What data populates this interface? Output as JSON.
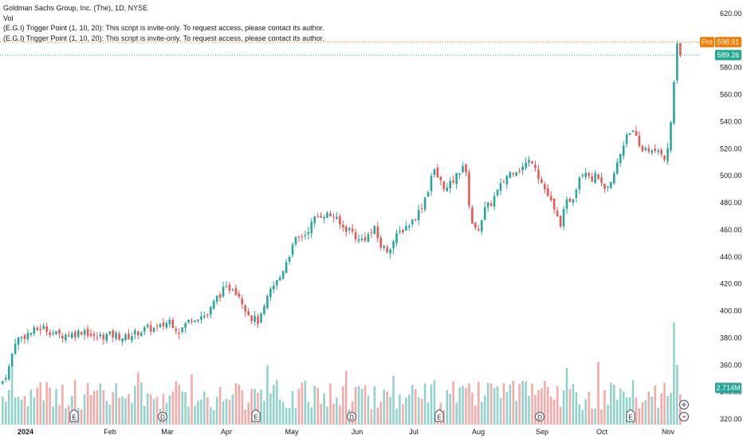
{
  "legend": {
    "title": "Goldman Sachs Group, Inc. (The), 1D, NYSE",
    "volume_label": "Vol",
    "script_line_1": "(E.G.I) Trigger Point  (1, 10, 20): This script is invite-only. To request access, please contact its author.",
    "script_line_2": "(E.G.I) Trigger Point  (1, 10, 20): This script is invite-only. To request access, please contact its author."
  },
  "colors": {
    "up": "#26a69a",
    "down": "#ef5350",
    "volume_up": "#92d2cc",
    "volume_down": "#f7a9a7",
    "premarket": "#f57c00",
    "last_price": "#22ab94"
  },
  "badges": {
    "premarket_label": "Pre",
    "premarket_price": "598.91",
    "last_price": "589.26",
    "volume": "2.714M"
  },
  "chart_data": {
    "type": "candlestick",
    "y_axis_ticks": [
      "620.00",
      "600.00",
      "580.00",
      "560.00",
      "540.00",
      "520.00",
      "500.00",
      "480.00",
      "460.00",
      "440.00",
      "420.00",
      "400.00",
      "380.00",
      "360.00",
      "340.00",
      "320.00"
    ],
    "ylim": [
      320,
      620
    ],
    "x_axis_labels": [
      "2024",
      "Feb",
      "Mar",
      "Apr",
      "May",
      "Jun",
      "Jul",
      "Aug",
      "Sep",
      "Oct",
      "Nov"
    ],
    "premarket_price": 598.91,
    "last_price": 589.26,
    "last_volume": "2.714M",
    "event_markers": [
      {
        "type": "E",
        "label": "E",
        "near": "mid-January"
      },
      {
        "type": "D",
        "label": "D",
        "near": "end of February"
      },
      {
        "type": "E",
        "label": "E",
        "near": "mid-April"
      },
      {
        "type": "D",
        "label": "D",
        "near": "end of May"
      },
      {
        "type": "E",
        "label": "E",
        "near": "mid-July"
      },
      {
        "type": "D",
        "label": "D",
        "near": "end of August"
      },
      {
        "type": "E",
        "label": "E",
        "near": "mid-October"
      }
    ],
    "close_path": [
      [
        0,
        348
      ],
      [
        4,
        358
      ],
      [
        8,
        378
      ],
      [
        16,
        383
      ],
      [
        20,
        385
      ],
      [
        25,
        388
      ],
      [
        35,
        382
      ],
      [
        45,
        383
      ],
      [
        52,
        386
      ],
      [
        58,
        380
      ],
      [
        65,
        382
      ],
      [
        72,
        382
      ],
      [
        78,
        380
      ],
      [
        85,
        384
      ],
      [
        92,
        387
      ],
      [
        99,
        387
      ],
      [
        106,
        393
      ],
      [
        112,
        385
      ],
      [
        120,
        395
      ],
      [
        130,
        397
      ],
      [
        136,
        410
      ],
      [
        140,
        415
      ],
      [
        146,
        418
      ],
      [
        150,
        412
      ],
      [
        155,
        400
      ],
      [
        158,
        395
      ],
      [
        163,
        392
      ],
      [
        170,
        415
      ],
      [
        176,
        425
      ],
      [
        181,
        440
      ],
      [
        186,
        452
      ],
      [
        192,
        457
      ],
      [
        198,
        468
      ],
      [
        203,
        472
      ],
      [
        210,
        470
      ],
      [
        215,
        462
      ],
      [
        221,
        460
      ],
      [
        226,
        452
      ],
      [
        231,
        455
      ],
      [
        236,
        460
      ],
      [
        240,
        448
      ],
      [
        244,
        445
      ],
      [
        250,
        455
      ],
      [
        255,
        462
      ],
      [
        259,
        465
      ],
      [
        265,
        475
      ],
      [
        270,
        490
      ],
      [
        273,
        505
      ],
      [
        278,
        495
      ],
      [
        282,
        490
      ],
      [
        288,
        500
      ],
      [
        293,
        510
      ],
      [
        296,
        480
      ],
      [
        299,
        458
      ],
      [
        302,
        462
      ],
      [
        306,
        475
      ],
      [
        310,
        480
      ],
      [
        315,
        490
      ],
      [
        320,
        500
      ],
      [
        325,
        505
      ],
      [
        329,
        505
      ],
      [
        333,
        510
      ],
      [
        337,
        512
      ],
      [
        340,
        500
      ],
      [
        344,
        490
      ],
      [
        348,
        480
      ],
      [
        351,
        470
      ],
      [
        354,
        465
      ],
      [
        358,
        480
      ],
      [
        362,
        485
      ],
      [
        366,
        500
      ],
      [
        370,
        505
      ],
      [
        374,
        498
      ],
      [
        378,
        500
      ],
      [
        381,
        488
      ],
      [
        385,
        490
      ],
      [
        389,
        505
      ],
      [
        393,
        520
      ],
      [
        397,
        535
      ],
      [
        401,
        530
      ],
      [
        405,
        518
      ],
      [
        409,
        522
      ],
      [
        413,
        515
      ],
      [
        417,
        520
      ],
      [
        421,
        512
      ],
      [
        423,
        525
      ],
      [
        426,
        570
      ],
      [
        428,
        595
      ],
      [
        430,
        589.26
      ]
    ]
  }
}
